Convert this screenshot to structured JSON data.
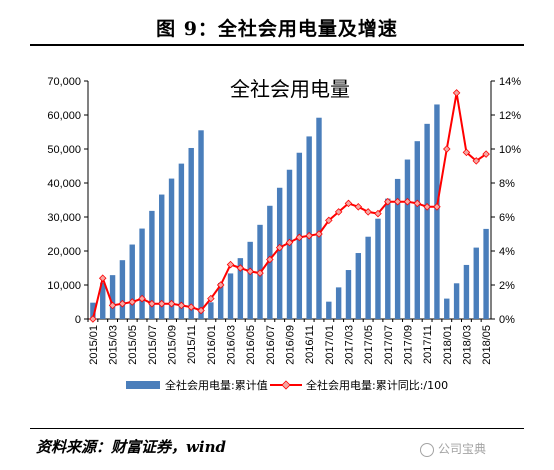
{
  "figure": {
    "title": "图 9：全社会用电量及增速",
    "source": "资料来源：财富证券，wind",
    "watermark": "公司宝典"
  },
  "chart_data": {
    "type": "bar+line",
    "title": "全社会用电量",
    "categories": [
      "2015/01",
      "2015/02",
      "2015/03",
      "2015/04",
      "2015/05",
      "2015/06",
      "2015/07",
      "2015/08",
      "2015/09",
      "2015/10",
      "2015/11",
      "2015/12",
      "2016/01",
      "2016/02",
      "2016/03",
      "2016/04",
      "2016/05",
      "2016/06",
      "2016/07",
      "2016/08",
      "2016/09",
      "2016/10",
      "2016/11",
      "2016/12",
      "2017/01",
      "2017/02",
      "2017/03",
      "2017/04",
      "2017/05",
      "2017/06",
      "2017/07",
      "2017/08",
      "2017/09",
      "2017/10",
      "2017/11",
      "2017/12",
      "2018/01",
      "2018/02",
      "2018/03",
      "2018/04",
      "2018/05"
    ],
    "x_tick_labels": [
      "2015/01",
      "2015/03",
      "2015/05",
      "2015/07",
      "2015/09",
      "2015/11",
      "2016/01",
      "2016/03",
      "2016/05",
      "2016/07",
      "2016/09",
      "2016/11",
      "2017/01",
      "2017/03",
      "2017/05",
      "2017/07",
      "2017/09",
      "2017/11",
      "2018/01",
      "2018/03",
      "2018/05"
    ],
    "y_left": {
      "ticks": [
        "0",
        "10,000",
        "20,000",
        "30,000",
        "40,000",
        "50,000",
        "60,000",
        "70,000"
      ],
      "ylim": [
        0,
        70000
      ]
    },
    "y_right": {
      "ticks": [
        "0%",
        "2%",
        "4%",
        "6%",
        "8%",
        "10%",
        "12%",
        "14%"
      ],
      "ylim": [
        0,
        14
      ]
    },
    "series": [
      {
        "name": "全社会用电量:累计值",
        "kind": "bar",
        "color": "#4a7ebb",
        "values": [
          4800,
          10700,
          12900,
          17300,
          21900,
          26600,
          31800,
          36600,
          41300,
          45700,
          50300,
          55500,
          4900,
          10600,
          13400,
          17900,
          22700,
          27700,
          33300,
          38600,
          43900,
          48900,
          53700,
          59200,
          5100,
          9300,
          14400,
          19400,
          24200,
          29500,
          35400,
          41200,
          46900,
          52300,
          57400,
          63100,
          6000,
          10500,
          15900,
          21000,
          26500
        ]
      },
      {
        "name": "全社会用电量:累计同比:/100",
        "kind": "line",
        "color": "#ff0000",
        "marker_color": "#f4a7a3",
        "values": [
          0.0,
          2.4,
          0.8,
          0.9,
          1.0,
          1.2,
          0.9,
          0.9,
          0.9,
          0.8,
          0.7,
          0.5,
          1.2,
          2.0,
          3.2,
          3.0,
          2.8,
          2.7,
          3.5,
          4.2,
          4.5,
          4.8,
          4.9,
          5.0,
          5.8,
          6.3,
          6.8,
          6.6,
          6.3,
          6.2,
          6.9,
          6.9,
          6.9,
          6.8,
          6.6,
          6.6,
          10.0,
          13.3,
          9.8,
          9.3,
          9.7
        ]
      }
    ],
    "legend": {
      "position": "bottom"
    },
    "grid": false
  }
}
